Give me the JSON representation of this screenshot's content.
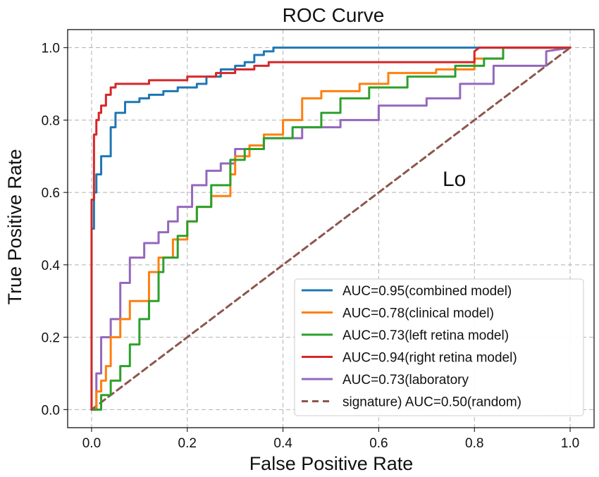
{
  "chart_data": {
    "type": "line",
    "title": "ROC Curve",
    "xlabel": "False Positive Rate",
    "ylabel": "True Positive Rate",
    "xlim": [
      -0.05,
      1.05
    ],
    "ylim": [
      -0.05,
      1.05
    ],
    "xticks": [
      0.0,
      0.2,
      0.4,
      0.6,
      0.8,
      1.0
    ],
    "yticks": [
      0.0,
      0.2,
      0.4,
      0.6,
      0.8,
      1.0
    ],
    "xtick_labels": [
      "0.0",
      "0.2",
      "0.4",
      "0.6",
      "0.8",
      "1.0"
    ],
    "ytick_labels": [
      "0.0",
      "0.2",
      "0.4",
      "0.6",
      "0.8",
      "1.0"
    ],
    "grid": true,
    "legend_position": "lower-right",
    "annotation": "Lo",
    "series": [
      {
        "name": "AUC=0.95(combined  model)",
        "color": "#1f77b4",
        "style": "solid",
        "x": [
          0.0,
          0.0,
          0.005,
          0.005,
          0.01,
          0.01,
          0.02,
          0.02,
          0.03,
          0.03,
          0.04,
          0.04,
          0.05,
          0.05,
          0.07,
          0.07,
          0.1,
          0.1,
          0.12,
          0.12,
          0.15,
          0.15,
          0.18,
          0.18,
          0.22,
          0.22,
          0.24,
          0.24,
          0.27,
          0.27,
          0.3,
          0.3,
          0.32,
          0.32,
          0.34,
          0.34,
          0.36,
          0.36,
          0.38,
          0.38,
          0.42,
          1.0
        ],
        "y": [
          0.0,
          0.5,
          0.5,
          0.6,
          0.6,
          0.65,
          0.65,
          0.7,
          0.7,
          0.7,
          0.7,
          0.78,
          0.78,
          0.82,
          0.82,
          0.85,
          0.85,
          0.86,
          0.86,
          0.87,
          0.87,
          0.88,
          0.88,
          0.89,
          0.89,
          0.9,
          0.9,
          0.92,
          0.92,
          0.94,
          0.94,
          0.95,
          0.95,
          0.96,
          0.96,
          0.98,
          0.98,
          0.99,
          0.99,
          1.0,
          1.0,
          1.0
        ]
      },
      {
        "name": "AUC=0.78(clinical model)",
        "color": "#ff7f0e",
        "style": "solid",
        "x": [
          0.0,
          0.01,
          0.01,
          0.02,
          0.02,
          0.03,
          0.03,
          0.04,
          0.04,
          0.06,
          0.06,
          0.08,
          0.08,
          0.12,
          0.12,
          0.14,
          0.14,
          0.17,
          0.17,
          0.2,
          0.2,
          0.22,
          0.22,
          0.25,
          0.25,
          0.29,
          0.29,
          0.3,
          0.3,
          0.33,
          0.33,
          0.36,
          0.36,
          0.4,
          0.4,
          0.44,
          0.44,
          0.48,
          0.48,
          0.56,
          0.56,
          0.62,
          0.62,
          0.72,
          0.72,
          0.8,
          0.8,
          0.86,
          0.86,
          1.0
        ],
        "y": [
          0.0,
          0.0,
          0.05,
          0.05,
          0.08,
          0.08,
          0.12,
          0.12,
          0.2,
          0.2,
          0.25,
          0.25,
          0.3,
          0.3,
          0.38,
          0.38,
          0.42,
          0.42,
          0.47,
          0.47,
          0.52,
          0.52,
          0.56,
          0.56,
          0.59,
          0.59,
          0.65,
          0.65,
          0.7,
          0.7,
          0.73,
          0.73,
          0.76,
          0.76,
          0.8,
          0.8,
          0.86,
          0.86,
          0.88,
          0.88,
          0.9,
          0.9,
          0.93,
          0.93,
          0.94,
          0.94,
          0.97,
          0.97,
          1.0,
          1.0
        ]
      },
      {
        "name": "AUC=0.73(left retina model)",
        "color": "#2ca02c",
        "style": "solid",
        "x": [
          0.0,
          0.02,
          0.02,
          0.04,
          0.04,
          0.06,
          0.06,
          0.08,
          0.08,
          0.1,
          0.1,
          0.12,
          0.12,
          0.14,
          0.14,
          0.15,
          0.15,
          0.18,
          0.18,
          0.2,
          0.2,
          0.22,
          0.22,
          0.25,
          0.25,
          0.29,
          0.29,
          0.32,
          0.32,
          0.36,
          0.36,
          0.42,
          0.42,
          0.48,
          0.48,
          0.52,
          0.52,
          0.58,
          0.58,
          0.66,
          0.66,
          0.76,
          0.76,
          0.82,
          0.82,
          0.86,
          0.86,
          1.0
        ],
        "y": [
          0.0,
          0.0,
          0.04,
          0.04,
          0.08,
          0.08,
          0.12,
          0.12,
          0.18,
          0.18,
          0.25,
          0.25,
          0.3,
          0.3,
          0.38,
          0.38,
          0.42,
          0.42,
          0.48,
          0.48,
          0.52,
          0.52,
          0.56,
          0.56,
          0.62,
          0.62,
          0.69,
          0.69,
          0.72,
          0.72,
          0.75,
          0.75,
          0.78,
          0.78,
          0.82,
          0.82,
          0.86,
          0.86,
          0.89,
          0.89,
          0.92,
          0.92,
          0.95,
          0.95,
          0.97,
          0.97,
          1.0,
          1.0
        ]
      },
      {
        "name": "AUC=0.94(right retina model)",
        "color": "#d62728",
        "style": "solid",
        "x": [
          0.0,
          0.0,
          0.005,
          0.005,
          0.01,
          0.01,
          0.015,
          0.015,
          0.02,
          0.02,
          0.03,
          0.03,
          0.04,
          0.04,
          0.05,
          0.05,
          0.06,
          0.06,
          0.12,
          0.12,
          0.2,
          0.2,
          0.26,
          0.26,
          0.3,
          0.3,
          0.34,
          0.34,
          0.37,
          0.37,
          0.4,
          0.4,
          0.8,
          0.8,
          0.81,
          1.0
        ],
        "y": [
          0.0,
          0.58,
          0.58,
          0.76,
          0.76,
          0.8,
          0.8,
          0.82,
          0.82,
          0.84,
          0.84,
          0.87,
          0.87,
          0.89,
          0.89,
          0.9,
          0.9,
          0.9,
          0.9,
          0.91,
          0.91,
          0.92,
          0.92,
          0.93,
          0.93,
          0.94,
          0.94,
          0.95,
          0.95,
          0.96,
          0.96,
          0.96,
          0.96,
          0.99,
          1.0,
          1.0
        ]
      },
      {
        "name": "AUC=0.73(laboratory",
        "color": "#9467bd",
        "style": "solid",
        "x": [
          0.0,
          0.01,
          0.01,
          0.02,
          0.02,
          0.04,
          0.04,
          0.06,
          0.06,
          0.08,
          0.08,
          0.11,
          0.11,
          0.14,
          0.14,
          0.16,
          0.16,
          0.18,
          0.18,
          0.21,
          0.21,
          0.24,
          0.24,
          0.27,
          0.27,
          0.3,
          0.3,
          0.36,
          0.36,
          0.44,
          0.44,
          0.52,
          0.52,
          0.6,
          0.6,
          0.7,
          0.7,
          0.77,
          0.77,
          0.84,
          0.84,
          0.95,
          0.95,
          1.0
        ],
        "y": [
          0.0,
          0.0,
          0.1,
          0.1,
          0.2,
          0.2,
          0.25,
          0.25,
          0.35,
          0.35,
          0.42,
          0.42,
          0.46,
          0.46,
          0.49,
          0.49,
          0.52,
          0.52,
          0.56,
          0.56,
          0.62,
          0.62,
          0.66,
          0.66,
          0.68,
          0.68,
          0.72,
          0.72,
          0.75,
          0.75,
          0.78,
          0.78,
          0.8,
          0.8,
          0.84,
          0.84,
          0.86,
          0.86,
          0.9,
          0.9,
          0.95,
          0.95,
          0.99,
          1.0
        ]
      },
      {
        "name": "signature) AUC=0.50(random)",
        "color": "#8c564b",
        "style": "dashed",
        "x": [
          0.0,
          1.0
        ],
        "y": [
          0.0,
          1.0
        ]
      }
    ]
  }
}
